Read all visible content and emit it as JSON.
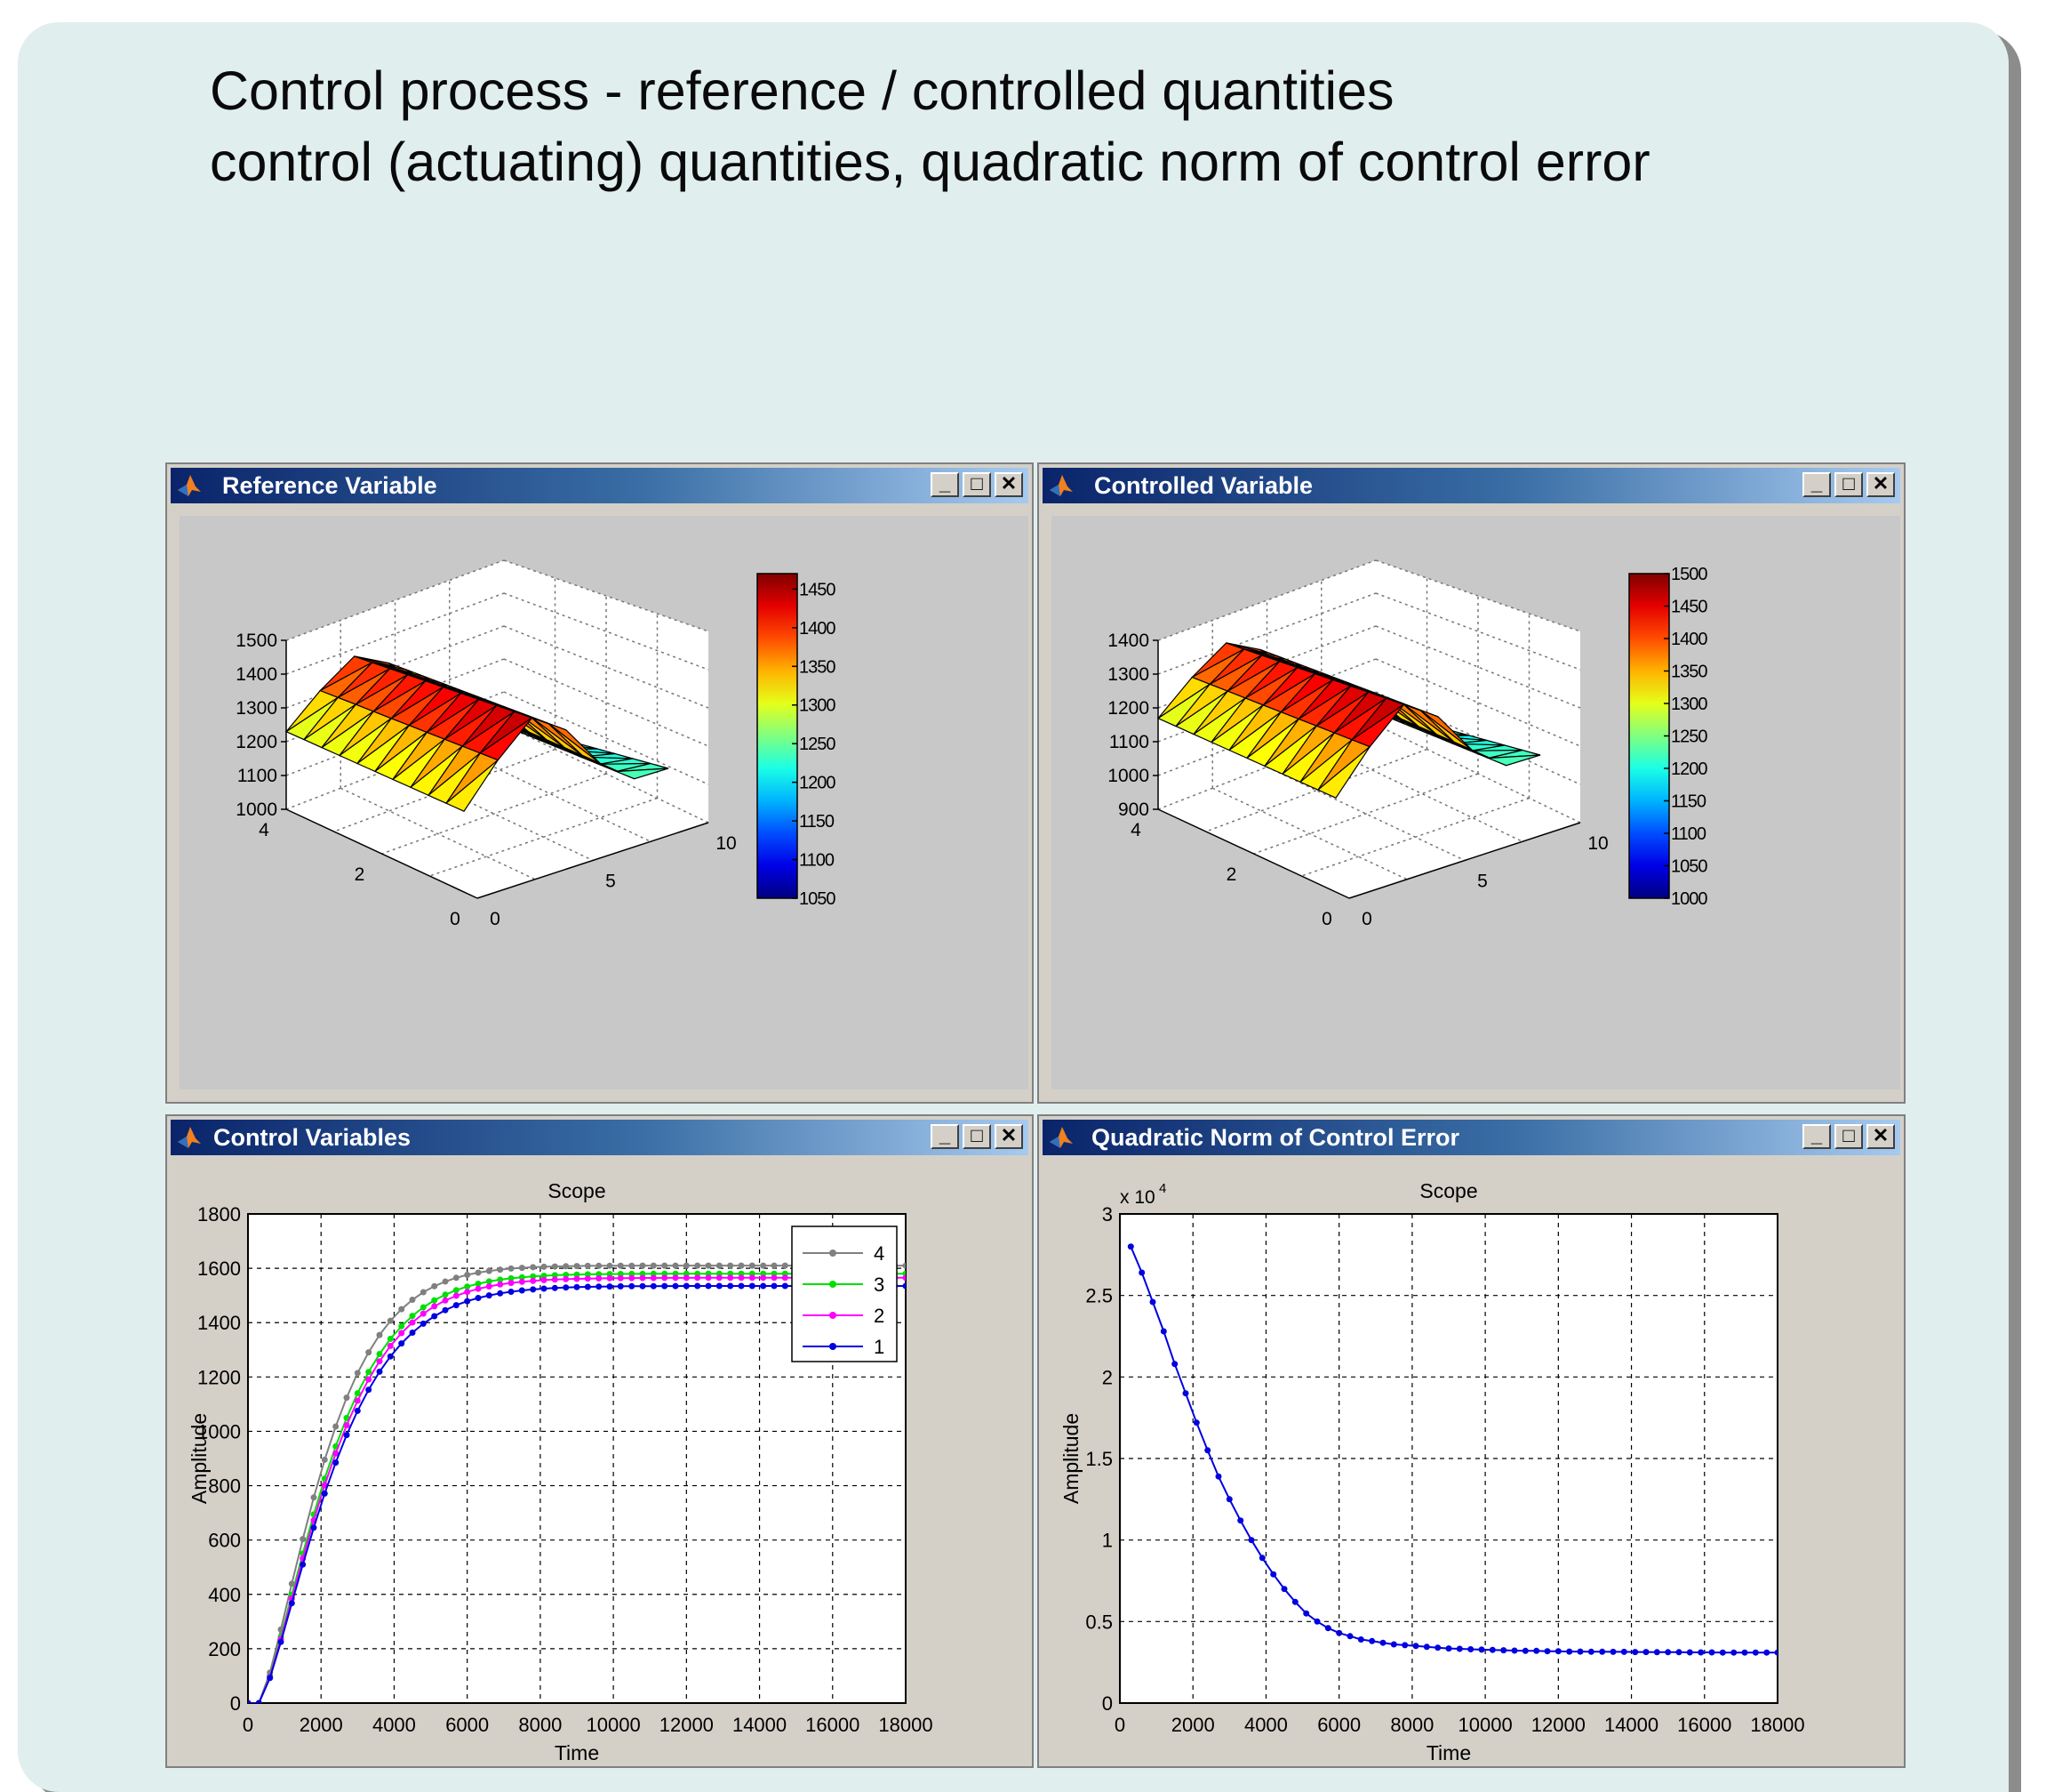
{
  "slide": {
    "title_line1": "Control process - reference / controlled quantities",
    "title_line2": "control (actuating) quantities, quadratic norm of control error"
  },
  "windows": [
    {
      "title": "Reference Variable",
      "buttons": [
        "minimize",
        "maximize",
        "close"
      ]
    },
    {
      "title": "Controlled Variable",
      "buttons": [
        "minimize",
        "maximize",
        "close"
      ]
    },
    {
      "title": "Control Variables",
      "buttons": [
        "minimize",
        "maximize",
        "close"
      ]
    },
    {
      "title": "Quadratic Norm of Control Error",
      "buttons": [
        "minimize",
        "maximize",
        "close"
      ]
    }
  ],
  "icons": {
    "window_icon": "matlab-logo-icon",
    "minimize": "minimize-icon",
    "maximize": "maximize-icon",
    "close": "close-icon"
  },
  "chart_data": [
    {
      "type": "surface3d",
      "z_ticks": [
        "1000",
        "1100",
        "1200",
        "1300",
        "1400",
        "1500"
      ],
      "x_ticks": [
        "0",
        "5",
        "10"
      ],
      "y_ticks": [
        "0",
        "2",
        "4"
      ],
      "colorbar": {
        "ticks": [
          "1050",
          "1100",
          "1150",
          "1200",
          "1250",
          "1300",
          "1350",
          "1400",
          "1450"
        ],
        "range": [
          1050,
          1470
        ],
        "colormap": "jet"
      }
    },
    {
      "type": "surface3d",
      "z_ticks": [
        "900",
        "1000",
        "1100",
        "1200",
        "1300",
        "1400"
      ],
      "x_ticks": [
        "0",
        "5",
        "10"
      ],
      "y_ticks": [
        "0",
        "2",
        "4"
      ],
      "colorbar": {
        "ticks": [
          "1000",
          "1050",
          "1100",
          "1150",
          "1200",
          "1250",
          "1300",
          "1350",
          "1400",
          "1450",
          "1500"
        ],
        "range": [
          1000,
          1500
        ],
        "colormap": "jet"
      }
    },
    {
      "type": "line",
      "title": "Scope",
      "xlabel": "Time",
      "ylabel": "Amplitude",
      "xlim": [
        0,
        18000
      ],
      "ylim": [
        0,
        1800
      ],
      "x_ticks": [
        0,
        2000,
        4000,
        6000,
        8000,
        10000,
        12000,
        14000,
        16000,
        18000
      ],
      "y_ticks": [
        0,
        200,
        400,
        600,
        800,
        1000,
        1200,
        1400,
        1600,
        1800
      ],
      "grid": true,
      "legend_position": "top-right",
      "series": [
        {
          "name": "4",
          "color": "#808080",
          "start": 300,
          "final": 1610,
          "tau": 2100
        },
        {
          "name": "3",
          "color": "#00e000",
          "start": 300,
          "final": 1580,
          "tau": 2250
        },
        {
          "name": "2",
          "color": "#ff00ff",
          "start": 300,
          "final": 1565,
          "tau": 2300
        },
        {
          "name": "1",
          "color": "#0000e0",
          "start": 300,
          "final": 1535,
          "tau": 2350
        }
      ]
    },
    {
      "type": "line",
      "title": "Scope",
      "xlabel": "Time",
      "ylabel": "Amplitude",
      "y_multiplier": "x 10",
      "y_multiplier_exp": "4",
      "xlim": [
        0,
        18000
      ],
      "ylim": [
        0,
        3
      ],
      "x_ticks": [
        0,
        2000,
        4000,
        6000,
        8000,
        10000,
        12000,
        14000,
        16000,
        18000
      ],
      "y_ticks": [
        "0",
        "0.5",
        "1",
        "1.5",
        "2",
        "2.5",
        "3"
      ],
      "grid": true,
      "series": [
        {
          "name": "",
          "color": "#0000e0",
          "x": [
            300,
            600,
            900,
            1200,
            1500,
            1800,
            2100,
            2400,
            2700,
            3000,
            3300,
            3600,
            3900,
            4200,
            4500,
            4800,
            5100,
            5400,
            5700,
            6000,
            6300,
            6600,
            6900,
            7200,
            7500,
            7800,
            8100,
            8400,
            8700,
            9000,
            9300,
            9600,
            9900,
            10200,
            10500,
            10800,
            11100,
            11400,
            11700,
            12000,
            12300,
            12600,
            12900,
            13200,
            13500,
            13800,
            14100,
            14400,
            14700,
            15000,
            15300,
            15600,
            15900,
            16200,
            16500,
            16800,
            17100,
            17400,
            17700,
            18000
          ],
          "y": [
            2.8,
            2.64,
            2.46,
            2.28,
            2.08,
            1.9,
            1.72,
            1.55,
            1.39,
            1.25,
            1.12,
            1.0,
            0.89,
            0.79,
            0.7,
            0.62,
            0.55,
            0.5,
            0.46,
            0.43,
            0.41,
            0.39,
            0.38,
            0.37,
            0.36,
            0.355,
            0.35,
            0.345,
            0.34,
            0.335,
            0.333,
            0.33,
            0.328,
            0.326,
            0.324,
            0.322,
            0.32,
            0.32,
            0.318,
            0.318,
            0.316,
            0.316,
            0.315,
            0.315,
            0.314,
            0.314,
            0.313,
            0.313,
            0.312,
            0.312,
            0.312,
            0.311,
            0.311,
            0.311,
            0.31,
            0.31,
            0.31,
            0.31,
            0.31,
            0.31
          ]
        }
      ]
    }
  ]
}
